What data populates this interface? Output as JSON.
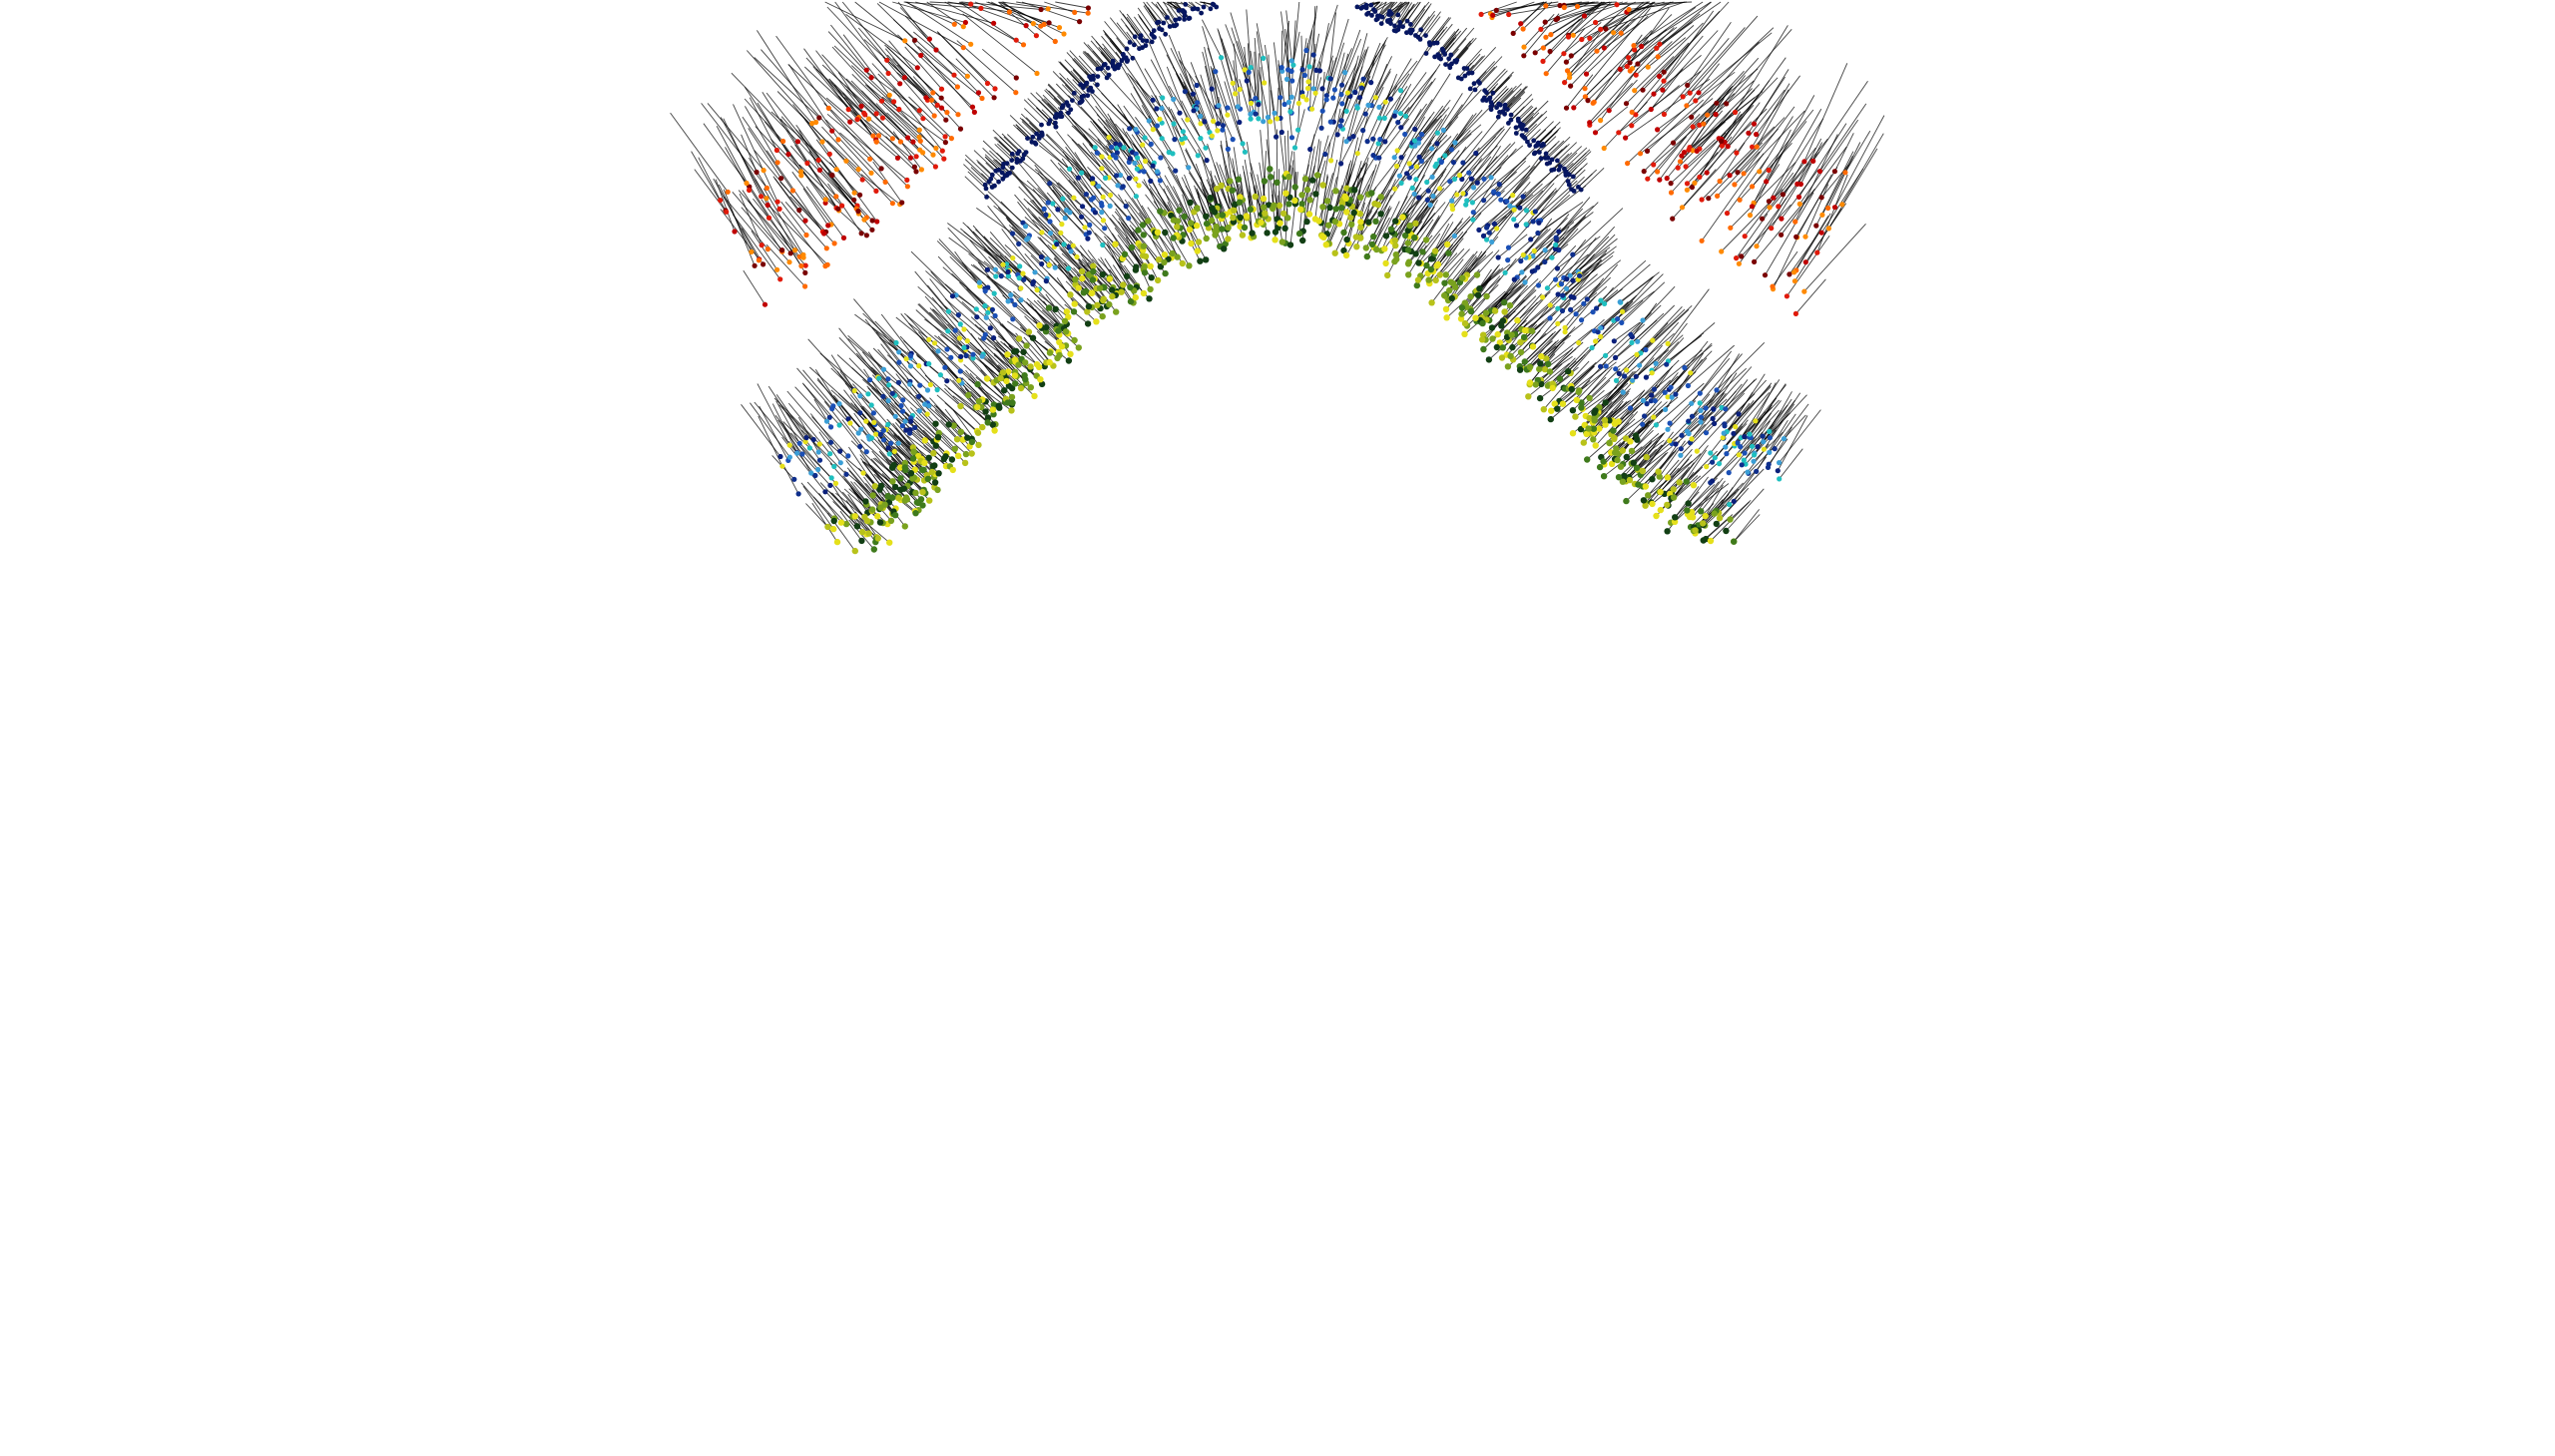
{
  "scene": {
    "kind": "3d-point-cloud-with-normals",
    "background_color": "#ffffff",
    "normal_line_color": "#000000",
    "shape": "arched-ribbon-surface",
    "color_ramp": [
      "#123f14",
      "#3f7a1c",
      "#9bb51e",
      "#e5e01a",
      "#1fbfbf",
      "#1a4fb5",
      "#0a1f7a",
      "#ff6a00",
      "#e01a0a",
      "#7a0000"
    ],
    "layers": [
      {
        "name": "inner-green-yellow",
        "colors": [
          "#123f14",
          "#3f7a1c",
          "#7aa21e",
          "#b8c21a",
          "#e5e01a"
        ]
      },
      {
        "name": "middle-cyan-blue",
        "colors": [
          "#1fbfbf",
          "#3a9ed6",
          "#1a4fb5",
          "#0e2e8c",
          "#0a1f7a",
          "#e5e01a"
        ]
      },
      {
        "name": "outer-orange-red",
        "colors": [
          "#ff8a00",
          "#ff6a00",
          "#e01a0a",
          "#c00000",
          "#7a0000"
        ]
      }
    ]
  }
}
